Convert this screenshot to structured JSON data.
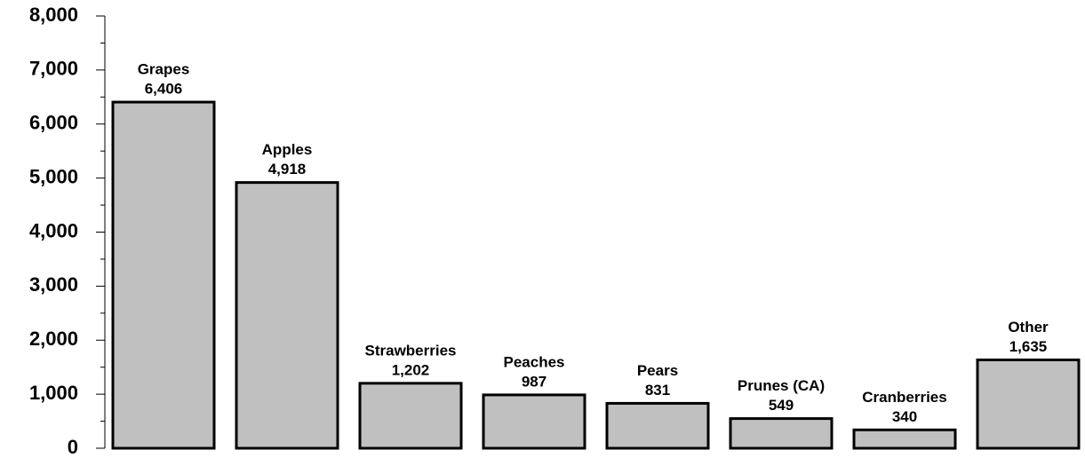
{
  "chart_data": {
    "type": "bar",
    "categories": [
      "Grapes",
      "Apples",
      "Strawberries",
      "Peaches",
      "Pears",
      "Prunes (CA)",
      "Cranberries",
      "Other"
    ],
    "values": [
      6406,
      4918,
      1202,
      987,
      831,
      549,
      340,
      1635
    ],
    "value_labels": [
      "6,406",
      "4,918",
      "1,202",
      "987",
      "831",
      "549",
      "340",
      "1,635"
    ],
    "color": "#c0c0c0",
    "ylim": [
      0,
      8000
    ],
    "yticks": [
      0,
      {
        "value": 1000,
        "label": "1,000"
      },
      {
        "value": 2000,
        "label": "2,000"
      },
      {
        "value": 3000,
        "label": "3,000"
      },
      {
        "value": 4000,
        "label": "4,000"
      },
      {
        "value": 5000,
        "label": "5,000"
      },
      {
        "value": 6000,
        "label": "6,000"
      },
      {
        "value": 7000,
        "label": "7,000"
      },
      {
        "value": 8000,
        "label": "8,000"
      }
    ],
    "minor_yticks": [
      500,
      1500,
      2500,
      3500,
      4500,
      5500,
      6500,
      7500
    ],
    "grid": false
  }
}
